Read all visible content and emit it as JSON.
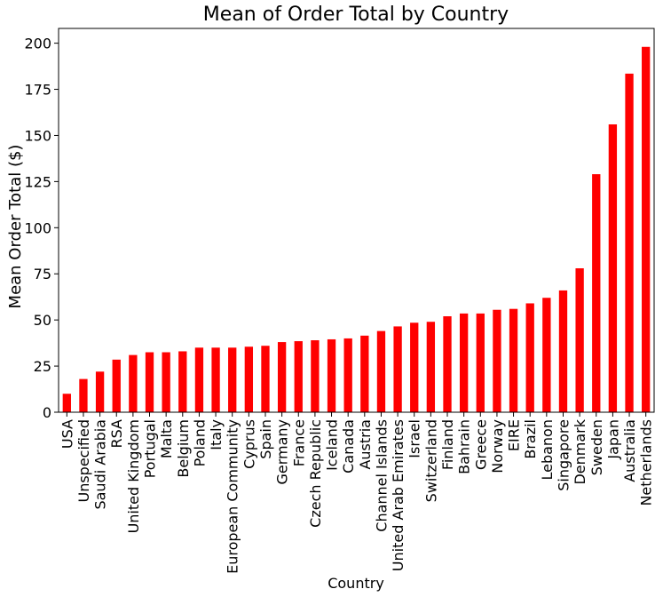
{
  "chart_data": {
    "type": "bar",
    "title": "Mean of Order Total by Country",
    "xlabel": "Country",
    "ylabel": "Mean Order Total ($)",
    "ylim": [
      0,
      208
    ],
    "yticks": [
      0,
      25,
      50,
      75,
      100,
      125,
      150,
      175,
      200
    ],
    "grid": false,
    "legend": "none",
    "bar_color": "#ff0000",
    "categories": [
      "USA",
      "Unspecified",
      "Saudi Arabia",
      "RSA",
      "United Kingdom",
      "Portugal",
      "Malta",
      "Belgium",
      "Poland",
      "Italy",
      "European Community",
      "Cyprus",
      "Spain",
      "Germany",
      "France",
      "Czech Republic",
      "Iceland",
      "Canada",
      "Austria",
      "Channel Islands",
      "United Arab Emirates",
      "Israel",
      "Switzerland",
      "Finland",
      "Bahrain",
      "Greece",
      "Norway",
      "EIRE",
      "Brazil",
      "Lebanon",
      "Singapore",
      "Denmark",
      "Sweden",
      "Japan",
      "Australia",
      "Netherlands"
    ],
    "values": [
      10,
      18,
      22,
      28.5,
      31,
      32.5,
      32.5,
      33,
      35,
      35,
      35,
      35.5,
      36,
      38,
      38.5,
      39,
      39.5,
      40,
      41.5,
      44,
      46.5,
      48.5,
      49,
      52,
      53.5,
      53.5,
      55.5,
      56,
      59,
      62,
      66,
      78,
      129,
      156,
      183.5,
      198
    ]
  }
}
